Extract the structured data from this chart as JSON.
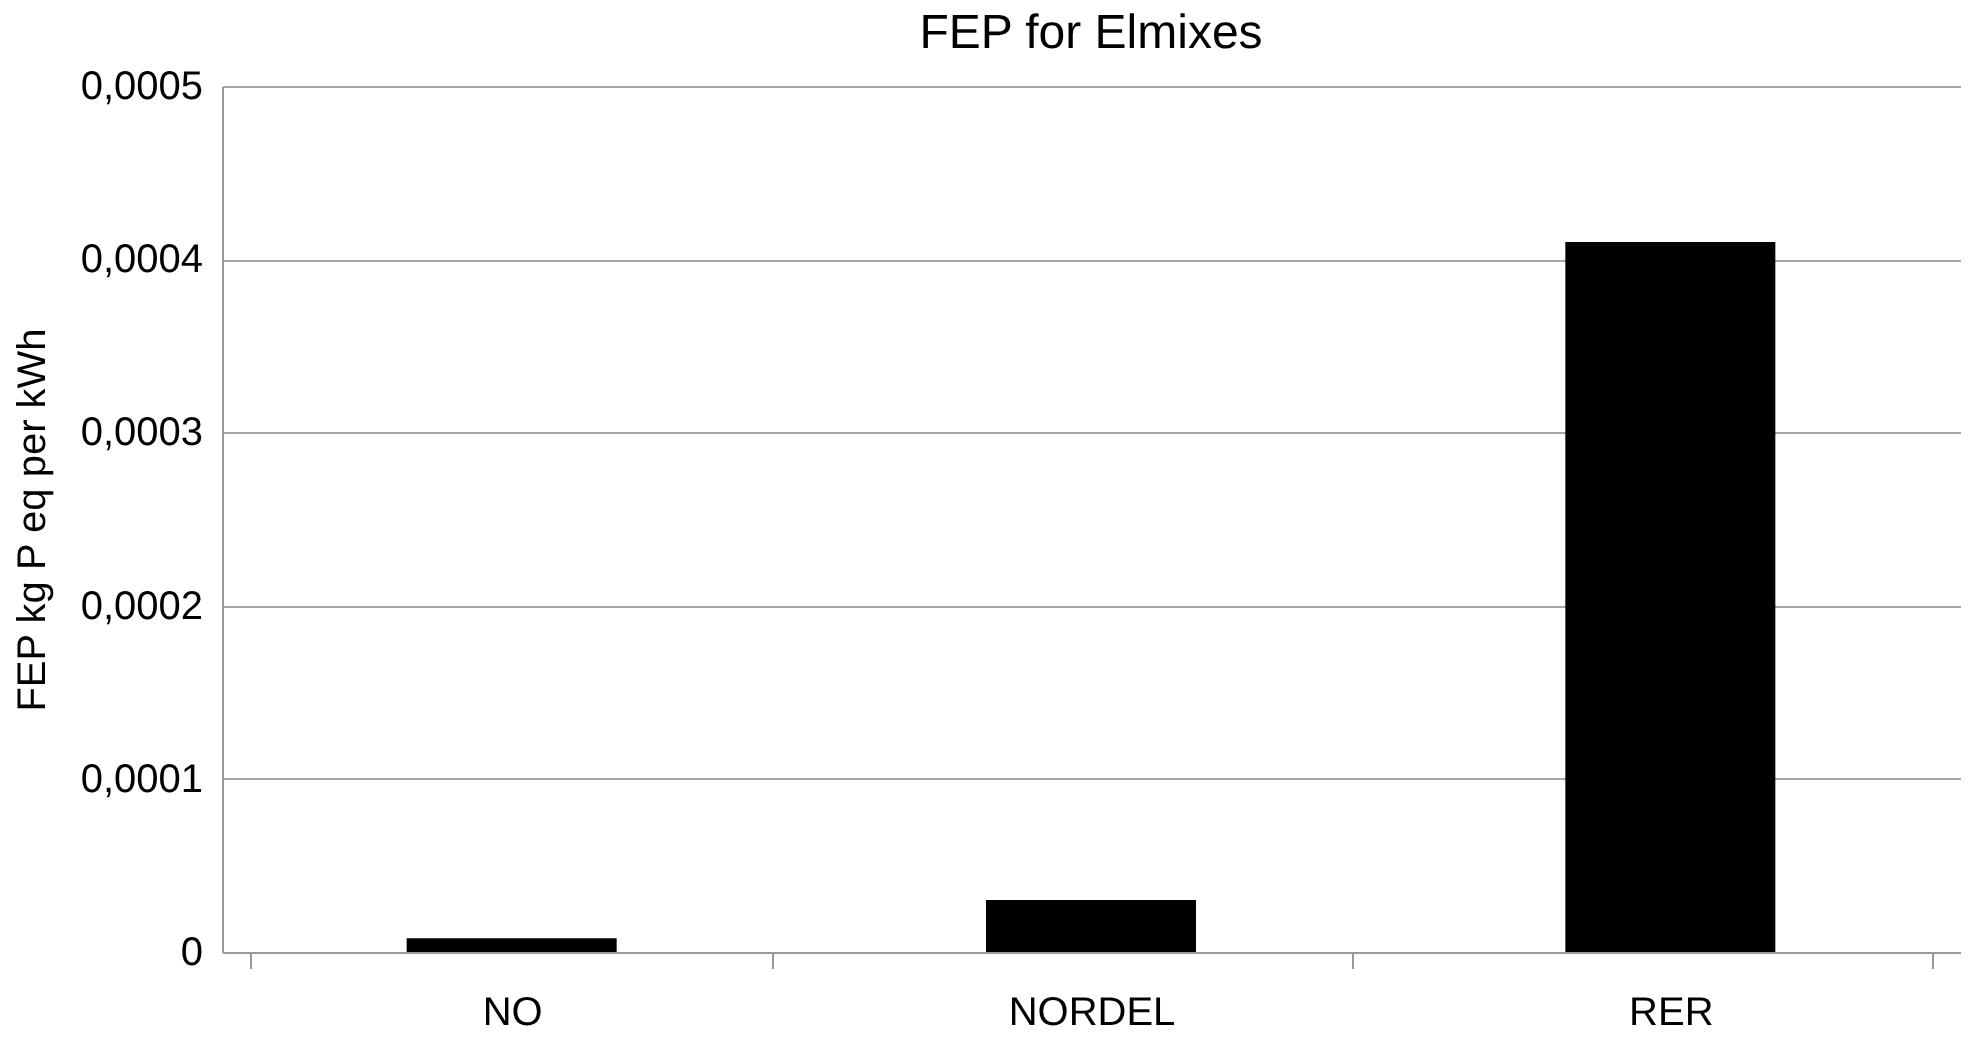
{
  "chart_data": {
    "type": "bar",
    "title": "FEP for Elmixes",
    "ylabel": "FEP kg P eq per kWh",
    "categories": [
      "NO",
      "NORDEL",
      "RER"
    ],
    "values": [
      8e-06,
      3e-05,
      0.00041
    ],
    "color": "#000000",
    "ylim": [
      0,
      0.0005
    ],
    "yticks": [
      {
        "value": 0,
        "label": "0"
      },
      {
        "value": 0.0001,
        "label": "0,0001"
      },
      {
        "value": 0.0002,
        "label": "0,0002"
      },
      {
        "value": 0.0003,
        "label": "0,0003"
      },
      {
        "value": 0.0004,
        "label": "0,0004"
      },
      {
        "value": 0.0005,
        "label": "0,0005"
      }
    ],
    "grid": "y"
  }
}
